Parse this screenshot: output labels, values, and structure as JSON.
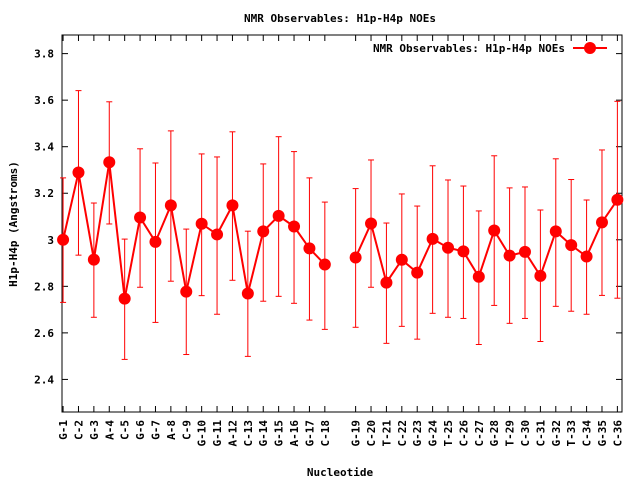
{
  "chart_data": {
    "type": "line",
    "title": "NMR Observables: H1p-H4p NOEs",
    "xlabel": "Nucleotide",
    "ylabel": "H1p-H4p (Angstroms)",
    "legend": {
      "label": "NMR Observables: H1p-H4p NOEs",
      "placement": "top-right"
    },
    "ylim": [
      2.26,
      3.88
    ],
    "xlim": [
      0.93,
      37.3
    ],
    "yticks": [
      "2.4",
      "2.6",
      "2.8",
      "3",
      "3.2",
      "3.4",
      "3.6",
      "3.8"
    ],
    "ytick_values": [
      2.4,
      2.6,
      2.8,
      3.0,
      3.2,
      3.4,
      3.6,
      3.8
    ],
    "grid": false,
    "color": "#ff0000",
    "series": [
      {
        "name": "NMR Observables: H1p-H4p NOEs",
        "points": [
          {
            "label": "G-1",
            "x": 1,
            "y": 3.0,
            "ymax": 3.266,
            "ymin": 2.731
          },
          {
            "label": "C-2",
            "x": 2,
            "y": 3.289,
            "ymax": 3.641,
            "ymin": 2.934
          },
          {
            "label": "G-3",
            "x": 3,
            "y": 2.915,
            "ymax": 3.158,
            "ymin": 2.667
          },
          {
            "label": "A-4",
            "x": 4,
            "y": 3.333,
            "ymax": 3.593,
            "ymin": 3.068
          },
          {
            "label": "C-5",
            "x": 5,
            "y": 2.747,
            "ymax": 3.003,
            "ymin": 2.486
          },
          {
            "label": "G-6",
            "x": 6,
            "y": 3.096,
            "ymax": 3.391,
            "ymin": 2.796
          },
          {
            "label": "G-7",
            "x": 7,
            "y": 2.991,
            "ymax": 3.33,
            "ymin": 2.645
          },
          {
            "label": "A-8",
            "x": 8,
            "y": 3.148,
            "ymax": 3.468,
            "ymin": 2.822
          },
          {
            "label": "C-9",
            "x": 9,
            "y": 2.777,
            "ymax": 3.046,
            "ymin": 2.507
          },
          {
            "label": "G-10",
            "x": 10,
            "y": 3.069,
            "ymax": 3.369,
            "ymin": 2.76
          },
          {
            "label": "G-11",
            "x": 11,
            "y": 3.023,
            "ymax": 3.356,
            "ymin": 2.68
          },
          {
            "label": "A-12",
            "x": 12,
            "y": 3.148,
            "ymax": 3.464,
            "ymin": 2.826
          },
          {
            "label": "C-13",
            "x": 13,
            "y": 2.769,
            "ymax": 3.037,
            "ymin": 2.499
          },
          {
            "label": "G-14",
            "x": 14,
            "y": 3.036,
            "ymax": 3.326,
            "ymin": 2.736
          },
          {
            "label": "G-15",
            "x": 15,
            "y": 3.103,
            "ymax": 3.443,
            "ymin": 2.757
          },
          {
            "label": "A-16",
            "x": 16,
            "y": 3.057,
            "ymax": 3.379,
            "ymin": 2.727
          },
          {
            "label": "G-17",
            "x": 17,
            "y": 2.963,
            "ymax": 3.266,
            "ymin": 2.655
          },
          {
            "label": "C-18",
            "x": 18,
            "y": 2.894,
            "ymax": 3.162,
            "ymin": 2.615
          },
          {
            "label": "G-19",
            "x": 20,
            "y": 2.924,
            "ymax": 3.22,
            "ymin": 2.624
          },
          {
            "label": "C-20",
            "x": 21,
            "y": 3.07,
            "ymax": 3.343,
            "ymin": 2.796
          },
          {
            "label": "T-21",
            "x": 22,
            "y": 2.816,
            "ymax": 3.072,
            "ymin": 2.555
          },
          {
            "label": "C-22",
            "x": 23,
            "y": 2.914,
            "ymax": 3.197,
            "ymin": 2.628
          },
          {
            "label": "G-23",
            "x": 24,
            "y": 2.859,
            "ymax": 3.145,
            "ymin": 2.573
          },
          {
            "label": "G-24",
            "x": 25,
            "y": 3.004,
            "ymax": 3.318,
            "ymin": 2.684
          },
          {
            "label": "T-25",
            "x": 26,
            "y": 2.966,
            "ymax": 3.257,
            "ymin": 2.667
          },
          {
            "label": "C-26",
            "x": 27,
            "y": 2.95,
            "ymax": 3.231,
            "ymin": 2.662
          },
          {
            "label": "C-27",
            "x": 28,
            "y": 2.841,
            "ymax": 3.124,
            "ymin": 2.55
          },
          {
            "label": "G-28",
            "x": 29,
            "y": 3.04,
            "ymax": 3.361,
            "ymin": 2.718
          },
          {
            "label": "T-29",
            "x": 30,
            "y": 2.932,
            "ymax": 3.223,
            "ymin": 2.641
          },
          {
            "label": "C-30",
            "x": 31,
            "y": 2.948,
            "ymax": 3.227,
            "ymin": 2.662
          },
          {
            "label": "C-31",
            "x": 32,
            "y": 2.845,
            "ymax": 3.128,
            "ymin": 2.563
          },
          {
            "label": "G-32",
            "x": 33,
            "y": 3.036,
            "ymax": 3.348,
            "ymin": 2.714
          },
          {
            "label": "T-33",
            "x": 34,
            "y": 2.977,
            "ymax": 3.259,
            "ymin": 2.693
          },
          {
            "label": "C-34",
            "x": 35,
            "y": 2.928,
            "ymax": 3.171,
            "ymin": 2.68
          },
          {
            "label": "G-35",
            "x": 36,
            "y": 3.075,
            "ymax": 3.386,
            "ymin": 2.761
          },
          {
            "label": "C-36",
            "x": 37,
            "y": 3.172,
            "ymax": 3.595,
            "ymin": 2.749
          }
        ]
      }
    ]
  }
}
